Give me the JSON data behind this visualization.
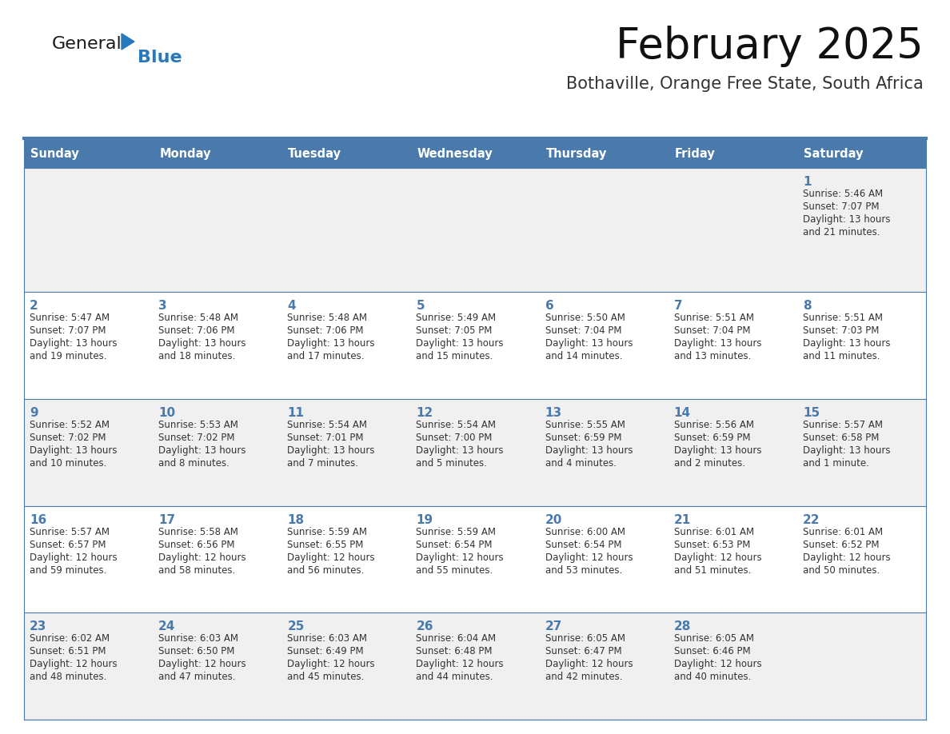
{
  "title": "February 2025",
  "subtitle": "Bothaville, Orange Free State, South Africa",
  "days_of_week": [
    "Sunday",
    "Monday",
    "Tuesday",
    "Wednesday",
    "Thursday",
    "Friday",
    "Saturday"
  ],
  "header_bg": "#4a7aab",
  "header_text": "#ffffff",
  "row_bg_odd": "#f0f0f0",
  "row_bg_even": "#ffffff",
  "cell_border_color": "#4a7aab",
  "day_num_color": "#4a7aab",
  "text_color": "#333333",
  "title_color": "#111111",
  "subtitle_color": "#333333",
  "logo_general_color": "#1a1a1a",
  "logo_blue_color": "#2878be",
  "calendar_data": [
    [
      {
        "day": null,
        "info": null
      },
      {
        "day": null,
        "info": null
      },
      {
        "day": null,
        "info": null
      },
      {
        "day": null,
        "info": null
      },
      {
        "day": null,
        "info": null
      },
      {
        "day": null,
        "info": null
      },
      {
        "day": 1,
        "info": "Sunrise: 5:46 AM\nSunset: 7:07 PM\nDaylight: 13 hours\nand 21 minutes."
      }
    ],
    [
      {
        "day": 2,
        "info": "Sunrise: 5:47 AM\nSunset: 7:07 PM\nDaylight: 13 hours\nand 19 minutes."
      },
      {
        "day": 3,
        "info": "Sunrise: 5:48 AM\nSunset: 7:06 PM\nDaylight: 13 hours\nand 18 minutes."
      },
      {
        "day": 4,
        "info": "Sunrise: 5:48 AM\nSunset: 7:06 PM\nDaylight: 13 hours\nand 17 minutes."
      },
      {
        "day": 5,
        "info": "Sunrise: 5:49 AM\nSunset: 7:05 PM\nDaylight: 13 hours\nand 15 minutes."
      },
      {
        "day": 6,
        "info": "Sunrise: 5:50 AM\nSunset: 7:04 PM\nDaylight: 13 hours\nand 14 minutes."
      },
      {
        "day": 7,
        "info": "Sunrise: 5:51 AM\nSunset: 7:04 PM\nDaylight: 13 hours\nand 13 minutes."
      },
      {
        "day": 8,
        "info": "Sunrise: 5:51 AM\nSunset: 7:03 PM\nDaylight: 13 hours\nand 11 minutes."
      }
    ],
    [
      {
        "day": 9,
        "info": "Sunrise: 5:52 AM\nSunset: 7:02 PM\nDaylight: 13 hours\nand 10 minutes."
      },
      {
        "day": 10,
        "info": "Sunrise: 5:53 AM\nSunset: 7:02 PM\nDaylight: 13 hours\nand 8 minutes."
      },
      {
        "day": 11,
        "info": "Sunrise: 5:54 AM\nSunset: 7:01 PM\nDaylight: 13 hours\nand 7 minutes."
      },
      {
        "day": 12,
        "info": "Sunrise: 5:54 AM\nSunset: 7:00 PM\nDaylight: 13 hours\nand 5 minutes."
      },
      {
        "day": 13,
        "info": "Sunrise: 5:55 AM\nSunset: 6:59 PM\nDaylight: 13 hours\nand 4 minutes."
      },
      {
        "day": 14,
        "info": "Sunrise: 5:56 AM\nSunset: 6:59 PM\nDaylight: 13 hours\nand 2 minutes."
      },
      {
        "day": 15,
        "info": "Sunrise: 5:57 AM\nSunset: 6:58 PM\nDaylight: 13 hours\nand 1 minute."
      }
    ],
    [
      {
        "day": 16,
        "info": "Sunrise: 5:57 AM\nSunset: 6:57 PM\nDaylight: 12 hours\nand 59 minutes."
      },
      {
        "day": 17,
        "info": "Sunrise: 5:58 AM\nSunset: 6:56 PM\nDaylight: 12 hours\nand 58 minutes."
      },
      {
        "day": 18,
        "info": "Sunrise: 5:59 AM\nSunset: 6:55 PM\nDaylight: 12 hours\nand 56 minutes."
      },
      {
        "day": 19,
        "info": "Sunrise: 5:59 AM\nSunset: 6:54 PM\nDaylight: 12 hours\nand 55 minutes."
      },
      {
        "day": 20,
        "info": "Sunrise: 6:00 AM\nSunset: 6:54 PM\nDaylight: 12 hours\nand 53 minutes."
      },
      {
        "day": 21,
        "info": "Sunrise: 6:01 AM\nSunset: 6:53 PM\nDaylight: 12 hours\nand 51 minutes."
      },
      {
        "day": 22,
        "info": "Sunrise: 6:01 AM\nSunset: 6:52 PM\nDaylight: 12 hours\nand 50 minutes."
      }
    ],
    [
      {
        "day": 23,
        "info": "Sunrise: 6:02 AM\nSunset: 6:51 PM\nDaylight: 12 hours\nand 48 minutes."
      },
      {
        "day": 24,
        "info": "Sunrise: 6:03 AM\nSunset: 6:50 PM\nDaylight: 12 hours\nand 47 minutes."
      },
      {
        "day": 25,
        "info": "Sunrise: 6:03 AM\nSunset: 6:49 PM\nDaylight: 12 hours\nand 45 minutes."
      },
      {
        "day": 26,
        "info": "Sunrise: 6:04 AM\nSunset: 6:48 PM\nDaylight: 12 hours\nand 44 minutes."
      },
      {
        "day": 27,
        "info": "Sunrise: 6:05 AM\nSunset: 6:47 PM\nDaylight: 12 hours\nand 42 minutes."
      },
      {
        "day": 28,
        "info": "Sunrise: 6:05 AM\nSunset: 6:46 PM\nDaylight: 12 hours\nand 40 minutes."
      },
      {
        "day": null,
        "info": null
      }
    ]
  ]
}
